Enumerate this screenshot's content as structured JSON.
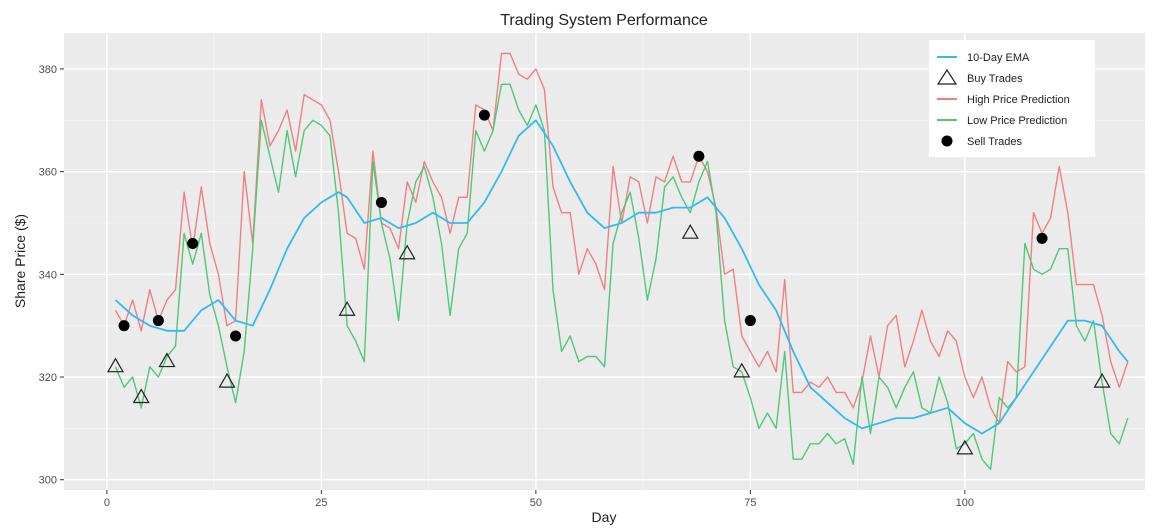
{
  "chart_data": {
    "type": "line",
    "title": "Trading System Performance",
    "xlabel": "Day",
    "ylabel": "Share Price ($)",
    "xlim": [
      -5,
      121
    ],
    "ylim": [
      298,
      387
    ],
    "x_ticks": [
      0,
      25,
      50,
      75,
      100
    ],
    "x_tick_labels": [
      "0",
      "25",
      "50",
      "75",
      "100"
    ],
    "y_ticks": [
      300,
      320,
      340,
      360,
      380
    ],
    "y_tick_labels": [
      "300",
      "320",
      "340",
      "360",
      "380"
    ],
    "grid": true,
    "legend_position": "top-right",
    "legend": [
      {
        "label": "10-Day EMA",
        "kind": "line",
        "color": "#33bbee"
      },
      {
        "label": "Buy Trades",
        "kind": "triangle",
        "color": "#222222"
      },
      {
        "label": "High Price Prediction",
        "kind": "line",
        "color": "#f08080"
      },
      {
        "label": "Low Price Prediction",
        "kind": "line",
        "color": "#50c878"
      },
      {
        "label": "Sell Trades",
        "kind": "dot",
        "color": "#000000"
      }
    ],
    "series": [
      {
        "name": "High Price Prediction",
        "color": "#f08080",
        "x": [
          1,
          2,
          3,
          4,
          5,
          6,
          7,
          8,
          9,
          10,
          11,
          12,
          13,
          14,
          15,
          16,
          17,
          18,
          19,
          20,
          21,
          22,
          23,
          24,
          25,
          26,
          27,
          28,
          29,
          30,
          31,
          32,
          33,
          34,
          35,
          36,
          37,
          38,
          39,
          40,
          41,
          42,
          43,
          44,
          45,
          46,
          47,
          48,
          49,
          50,
          51,
          52,
          53,
          54,
          55,
          56,
          57,
          58,
          59,
          60,
          61,
          62,
          63,
          64,
          65,
          66,
          67,
          68,
          69,
          70,
          71,
          72,
          73,
          74,
          75,
          76,
          77,
          78,
          79,
          80,
          81,
          82,
          83,
          84,
          85,
          86,
          87,
          88,
          89,
          90,
          91,
          92,
          93,
          94,
          95,
          96,
          97,
          98,
          99,
          100,
          101,
          102,
          103,
          104,
          105,
          106,
          107,
          108,
          109,
          110,
          111,
          112,
          113,
          114,
          115,
          116,
          117,
          118,
          119
        ],
        "y": [
          333,
          330,
          335,
          329,
          337,
          331,
          335,
          337,
          356,
          345,
          357,
          346,
          340,
          330,
          331,
          360,
          346,
          374,
          365,
          368,
          372,
          364,
          375,
          374,
          373,
          370,
          360,
          348,
          347,
          341,
          364,
          350,
          349,
          345,
          358,
          354,
          362,
          358,
          355,
          348,
          355,
          355,
          373,
          372,
          368,
          383,
          383,
          379,
          378,
          380,
          376,
          357,
          352,
          352,
          340,
          345,
          342,
          337,
          361,
          350,
          359,
          358,
          350,
          359,
          358,
          363,
          358,
          358,
          363,
          360,
          353,
          340,
          341,
          328,
          325,
          322,
          325,
          321,
          339,
          317,
          317,
          319,
          318,
          320,
          317,
          317,
          314,
          319,
          328,
          320,
          330,
          332,
          322,
          327,
          333,
          327,
          324,
          329,
          327,
          320,
          316,
          320,
          314,
          311,
          323,
          321,
          322,
          352,
          348,
          351,
          361,
          352,
          338,
          338,
          338,
          332,
          323,
          318,
          323
        ]
      },
      {
        "name": "Low Price Prediction",
        "color": "#50c878",
        "x": [
          1,
          2,
          3,
          4,
          5,
          6,
          7,
          8,
          9,
          10,
          11,
          12,
          13,
          14,
          15,
          16,
          17,
          18,
          19,
          20,
          21,
          22,
          23,
          24,
          25,
          26,
          27,
          28,
          29,
          30,
          31,
          32,
          33,
          34,
          35,
          36,
          37,
          38,
          39,
          40,
          41,
          42,
          43,
          44,
          45,
          46,
          47,
          48,
          49,
          50,
          51,
          52,
          53,
          54,
          55,
          56,
          57,
          58,
          59,
          60,
          61,
          62,
          63,
          64,
          65,
          66,
          67,
          68,
          69,
          70,
          71,
          72,
          73,
          74,
          75,
          76,
          77,
          78,
          79,
          80,
          81,
          82,
          83,
          84,
          85,
          86,
          87,
          88,
          89,
          90,
          91,
          92,
          93,
          94,
          95,
          96,
          97,
          98,
          99,
          100,
          101,
          102,
          103,
          104,
          105,
          106,
          107,
          108,
          109,
          110,
          111,
          112,
          113,
          114,
          115,
          116,
          117,
          118,
          119
        ],
        "y": [
          322,
          318,
          320,
          314,
          322,
          320,
          324,
          326,
          348,
          342,
          348,
          336,
          330,
          322,
          315,
          325,
          345,
          370,
          363,
          356,
          368,
          359,
          368,
          370,
          369,
          367,
          352,
          330,
          327,
          323,
          362,
          350,
          343,
          331,
          350,
          358,
          361,
          355,
          346,
          332,
          345,
          348,
          368,
          364,
          368,
          377,
          377,
          372,
          369,
          373,
          368,
          337,
          325,
          328,
          323,
          324,
          324,
          322,
          346,
          352,
          356,
          347,
          335,
          343,
          357,
          359,
          355,
          352,
          358,
          362,
          352,
          331,
          322,
          321,
          316,
          310,
          313,
          310,
          325,
          304,
          304,
          307,
          307,
          309,
          307,
          308,
          303,
          320,
          309,
          320,
          318,
          314,
          318,
          321,
          314,
          313,
          320,
          315,
          306,
          307,
          309,
          304,
          302,
          316,
          314,
          316,
          346,
          341,
          340,
          341,
          345,
          345,
          330,
          327,
          331,
          319,
          309,
          307,
          312
        ]
      },
      {
        "name": "10-Day EMA",
        "color": "#33bbee",
        "x": [
          1,
          3,
          5,
          7,
          9,
          11,
          13,
          15,
          17,
          19,
          21,
          23,
          25,
          27,
          28,
          30,
          32,
          34,
          36,
          38,
          40,
          42,
          44,
          46,
          48,
          50,
          52,
          54,
          56,
          58,
          60,
          62,
          64,
          66,
          68,
          70,
          72,
          74,
          76,
          78,
          80,
          82,
          84,
          86,
          88,
          90,
          92,
          94,
          96,
          98,
          100,
          102,
          104,
          106,
          108,
          110,
          112,
          114,
          116,
          118,
          119
        ],
        "y": [
          335,
          332,
          330,
          329,
          329,
          333,
          335,
          331,
          330,
          337,
          345,
          351,
          354,
          356,
          355,
          350,
          351,
          349,
          350,
          352,
          350,
          350,
          354,
          360,
          367,
          370,
          365,
          358,
          352,
          349,
          350,
          352,
          352,
          353,
          353,
          355,
          351,
          345,
          338,
          333,
          325,
          318,
          315,
          312,
          310,
          311,
          312,
          312,
          313,
          314,
          311,
          309,
          311,
          316,
          321,
          326,
          331,
          331,
          330,
          325,
          323
        ]
      }
    ],
    "buy_trades": {
      "name": "Buy Trades",
      "x": [
        1,
        4,
        7,
        14,
        28,
        35,
        68,
        74,
        100,
        116
      ],
      "y": [
        322,
        316,
        323,
        319,
        333,
        344,
        348,
        321,
        306,
        319
      ]
    },
    "sell_trades": {
      "name": "Sell Trades",
      "x": [
        2,
        6,
        10,
        15,
        32,
        44,
        69,
        75,
        109
      ],
      "y": [
        330,
        331,
        346,
        328,
        354,
        371,
        363,
        331,
        347
      ]
    }
  }
}
